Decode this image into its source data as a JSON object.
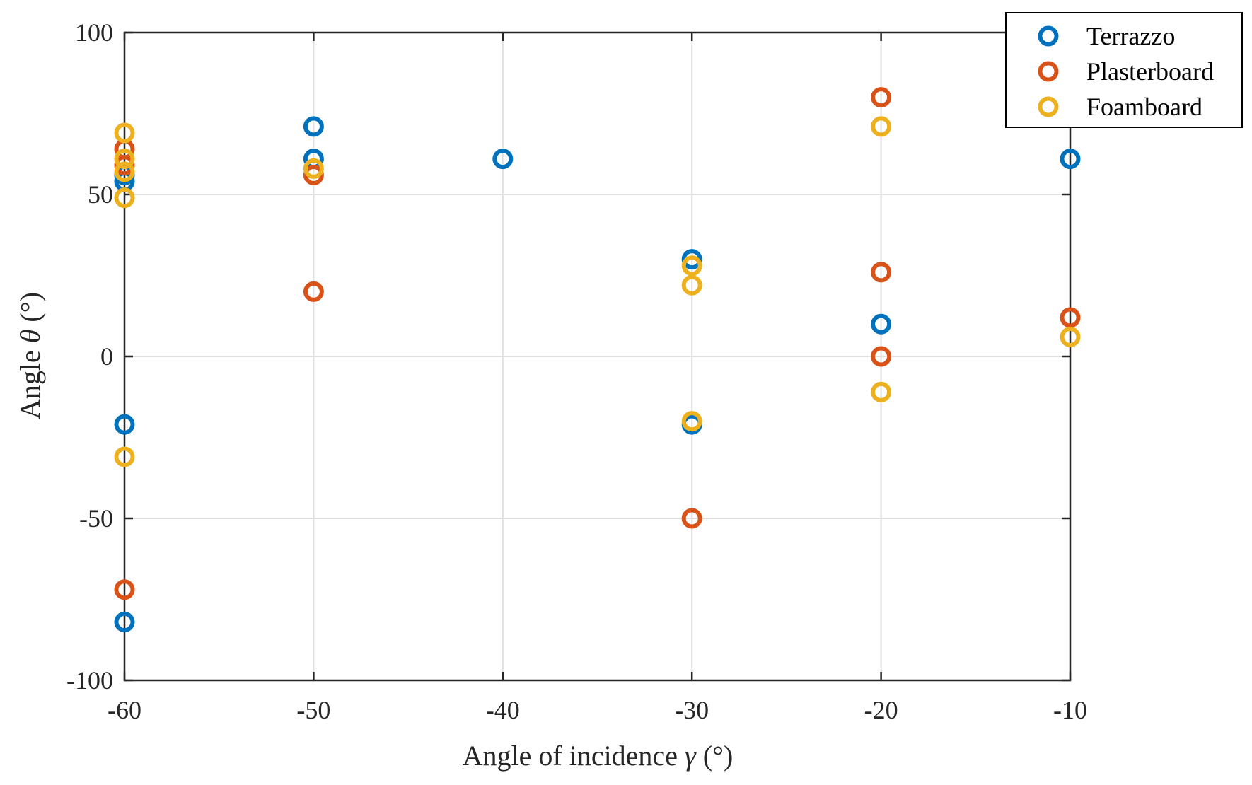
{
  "chart_data": {
    "type": "scatter",
    "xlabel_prefix": "Angle of incidence ",
    "xlabel_symbol": "γ",
    "xlabel_suffix": " (°)",
    "ylabel_prefix": "Angle ",
    "ylabel_symbol": "θ",
    "ylabel_suffix": " (°)",
    "xlim": [
      -60,
      -10
    ],
    "ylim": [
      -100,
      100
    ],
    "xticks": [
      -60,
      -50,
      -40,
      -30,
      -20,
      -10
    ],
    "yticks": [
      -100,
      -50,
      0,
      50,
      100
    ],
    "grid": true,
    "legend_position": "top-right",
    "series": [
      {
        "name": "Terrazzo",
        "color": "#0072BD",
        "points": [
          [
            -60,
            54
          ],
          [
            -60,
            56
          ],
          [
            -60,
            -21
          ],
          [
            -60,
            -82
          ],
          [
            -50,
            71
          ],
          [
            -50,
            61
          ],
          [
            -40,
            61
          ],
          [
            -30,
            30
          ],
          [
            -30,
            -21
          ],
          [
            -20,
            10
          ],
          [
            -10,
            61
          ]
        ]
      },
      {
        "name": "Plasterboard",
        "color": "#D95319",
        "points": [
          [
            -60,
            64
          ],
          [
            -60,
            59
          ],
          [
            -60,
            -72
          ],
          [
            -50,
            56
          ],
          [
            -50,
            20
          ],
          [
            -30,
            -50
          ],
          [
            -20,
            80
          ],
          [
            -20,
            26
          ],
          [
            -20,
            0
          ],
          [
            -10,
            12
          ]
        ]
      },
      {
        "name": "Foamboard",
        "color": "#EDB120",
        "points": [
          [
            -60,
            69
          ],
          [
            -60,
            61
          ],
          [
            -60,
            57
          ],
          [
            -60,
            49
          ],
          [
            -60,
            -31
          ],
          [
            -50,
            58
          ],
          [
            -30,
            28
          ],
          [
            -30,
            22
          ],
          [
            -30,
            -20
          ],
          [
            -20,
            71
          ],
          [
            -20,
            -11
          ],
          [
            -10,
            6
          ]
        ]
      }
    ]
  }
}
